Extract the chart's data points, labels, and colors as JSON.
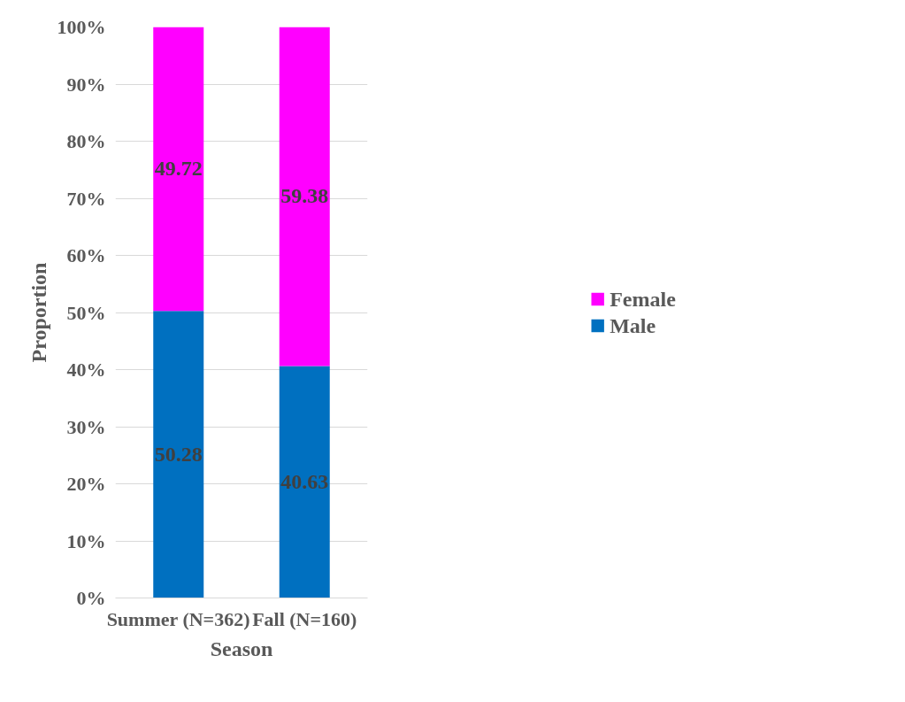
{
  "chart_data": {
    "type": "bar",
    "stacked": true,
    "xlabel": "Season",
    "ylabel": "Proportion",
    "categories": [
      "Summer (N=362)",
      "Fall (N=160)"
    ],
    "series": [
      {
        "name": "Male",
        "color": "#0070c0",
        "values": [
          50.28,
          40.63
        ]
      },
      {
        "name": "Female",
        "color": "#ff00ff",
        "values": [
          49.72,
          59.38
        ]
      }
    ],
    "ylim": [
      0,
      100
    ],
    "yticks": [
      {
        "value": 0,
        "label": "0%"
      },
      {
        "value": 10,
        "label": "10%"
      },
      {
        "value": 20,
        "label": "20%"
      },
      {
        "value": 30,
        "label": "30%"
      },
      {
        "value": 40,
        "label": "40%"
      },
      {
        "value": 50,
        "label": "50%"
      },
      {
        "value": 60,
        "label": "60%"
      },
      {
        "value": 70,
        "label": "70%"
      },
      {
        "value": 80,
        "label": "80%"
      },
      {
        "value": 90,
        "label": "90%"
      },
      {
        "value": 100,
        "label": "100%"
      }
    ],
    "grid": "y",
    "legend": "right",
    "data_labels": true
  }
}
